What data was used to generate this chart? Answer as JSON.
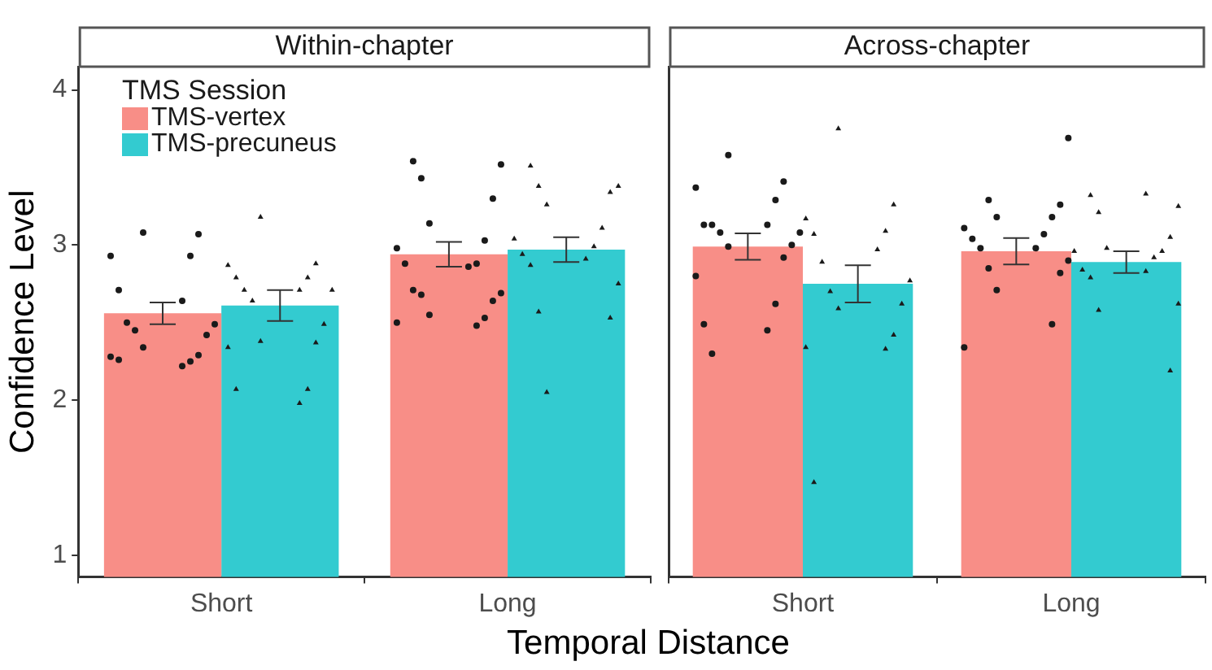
{
  "chart_data": [
    {
      "type": "bar",
      "title": "Within-chapter",
      "xlabel": "Temporal Distance",
      "ylabel": "Confidence Level",
      "legend_title": "TMS Session",
      "legend": "top left",
      "grid": false,
      "categories": [
        "Short",
        "Long"
      ],
      "ylim": [
        0.86,
        4.15
      ],
      "yticks": [
        1,
        2,
        3,
        4
      ],
      "series": [
        {
          "name": "TMS-vertex",
          "color": "#f88e87",
          "values": [
            2.56,
            2.94
          ],
          "errors": [
            0.07,
            0.08
          ]
        },
        {
          "name": "TMS-precuneus",
          "color": "#33cbd0",
          "values": [
            2.61,
            2.97
          ],
          "errors": [
            0.1,
            0.08
          ]
        },
        {
          "type": "scatter",
          "marker": "circle",
          "color": "#1a1a1a",
          "x": [
            "Short",
            "Short",
            "Short",
            "Short",
            "Short",
            "Short",
            "Short",
            "Short",
            "Short",
            "Short",
            "Short",
            "Short",
            "Short",
            "Short",
            "Short",
            "Short",
            "Long",
            "Long",
            "Long",
            "Long",
            "Long",
            "Long",
            "Long",
            "Long",
            "Long",
            "Long",
            "Long",
            "Long",
            "Long",
            "Long",
            "Long",
            "Long",
            "Long",
            "Long"
          ],
          "values": [
            3.08,
            3.07,
            2.93,
            2.93,
            2.71,
            2.64,
            2.5,
            2.49,
            2.45,
            2.42,
            2.34,
            2.29,
            2.28,
            2.25,
            2.26,
            2.22,
            3.54,
            3.52,
            3.43,
            3.3,
            3.14,
            3.03,
            2.98,
            2.88,
            2.88,
            2.86,
            2.71,
            2.69,
            2.68,
            2.64,
            2.55,
            2.53,
            2.5,
            2.48
          ]
        },
        {
          "type": "scatter",
          "marker": "triangle",
          "color": "#1a1a1a",
          "x": [
            "Short",
            "Short",
            "Short",
            "Short",
            "Short",
            "Short",
            "Short",
            "Short",
            "Short",
            "Short",
            "Short",
            "Short",
            "Short",
            "Short",
            "Short",
            "Short",
            "Long",
            "Long",
            "Long",
            "Long",
            "Long",
            "Long",
            "Long",
            "Long",
            "Long",
            "Long",
            "Long",
            "Long",
            "Long",
            "Long",
            "Long"
          ],
          "values": [
            3.18,
            2.88,
            2.87,
            2.79,
            2.79,
            2.71,
            2.71,
            2.71,
            2.64,
            2.49,
            2.38,
            2.37,
            2.34,
            2.07,
            2.07,
            1.98,
            3.51,
            3.38,
            3.38,
            3.34,
            3.26,
            3.11,
            3.04,
            2.99,
            2.94,
            2.91,
            2.87,
            2.75,
            2.57,
            2.53,
            2.05
          ]
        }
      ]
    },
    {
      "type": "bar",
      "title": "Across-chapter",
      "legend": false,
      "grid": false,
      "tick_labels": "x",
      "categories": [
        "Short",
        "Long"
      ],
      "ylim": [
        0.86,
        4.15
      ],
      "yticks": [
        1,
        2,
        3,
        4
      ],
      "series": [
        {
          "color": "#f88e87",
          "values": [
            2.99,
            2.96
          ],
          "errors": [
            0.085,
            0.085
          ]
        },
        {
          "color": "#33cbd0",
          "values": [
            2.75,
            2.89
          ],
          "errors": [
            0.12,
            0.07
          ]
        },
        {
          "type": "scatter",
          "marker": "circle",
          "color": "#1a1a1a",
          "x": [
            "Short",
            "Short",
            "Short",
            "Short",
            "Short",
            "Short",
            "Short",
            "Short",
            "Short",
            "Short",
            "Short",
            "Short",
            "Short",
            "Short",
            "Short",
            "Short",
            "Short",
            "Long",
            "Long",
            "Long",
            "Long",
            "Long",
            "Long",
            "Long",
            "Long",
            "Long",
            "Long",
            "Long",
            "Long",
            "Long",
            "Long",
            "Long",
            "Long"
          ],
          "values": [
            3.58,
            3.41,
            3.37,
            3.29,
            3.13,
            3.13,
            3.13,
            3.08,
            3.08,
            3.0,
            2.99,
            2.92,
            2.8,
            2.62,
            2.49,
            2.45,
            2.3,
            3.69,
            3.29,
            3.26,
            3.18,
            3.18,
            3.11,
            3.07,
            3.04,
            2.98,
            2.98,
            2.9,
            2.85,
            2.82,
            2.71,
            2.49,
            2.34
          ]
        },
        {
          "type": "scatter",
          "marker": "triangle",
          "color": "#1a1a1a",
          "x": [
            "Short",
            "Short",
            "Short",
            "Short",
            "Short",
            "Short",
            "Short",
            "Short",
            "Short",
            "Short",
            "Short",
            "Short",
            "Short",
            "Short",
            "Short",
            "Long",
            "Long",
            "Long",
            "Long",
            "Long",
            "Long",
            "Long",
            "Long",
            "Long",
            "Long",
            "Long",
            "Long",
            "Long",
            "Long",
            "Long"
          ],
          "values": [
            3.75,
            3.26,
            3.17,
            3.09,
            3.07,
            2.97,
            2.89,
            2.77,
            2.7,
            2.62,
            2.59,
            2.42,
            2.34,
            2.33,
            1.47,
            3.33,
            3.32,
            3.25,
            3.21,
            3.05,
            2.98,
            2.96,
            2.96,
            2.92,
            2.84,
            2.83,
            2.79,
            2.62,
            2.58,
            2.19
          ]
        }
      ]
    }
  ]
}
